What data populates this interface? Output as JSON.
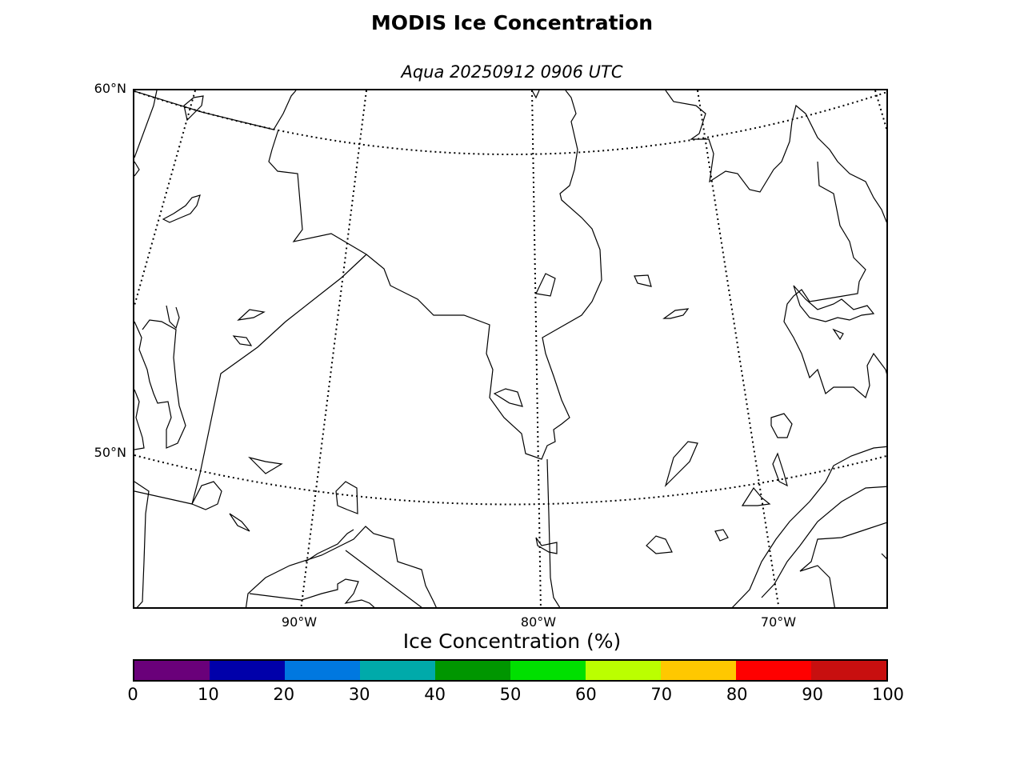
{
  "title": "MODIS Ice Concentration",
  "subtitle": "Aqua 20250912 0906 UTC",
  "map": {
    "lat_labels": [
      "60°N",
      "50°N"
    ],
    "lon_labels": [
      "90°W",
      "80°W",
      "70°W"
    ],
    "graticule_style": "dotted",
    "features": [
      "coastlines",
      "borders",
      "lakes"
    ]
  },
  "colorbar": {
    "label": "Ice Concentration (%)",
    "ticks": [
      "0",
      "10",
      "20",
      "30",
      "40",
      "50",
      "60",
      "70",
      "80",
      "90",
      "100"
    ],
    "colors": [
      "#6a007a",
      "#0000aa",
      "#0078e0",
      "#00aaaa",
      "#009600",
      "#00e000",
      "#bbff00",
      "#ffc800",
      "#ff0000",
      "#c80f0f"
    ]
  }
}
